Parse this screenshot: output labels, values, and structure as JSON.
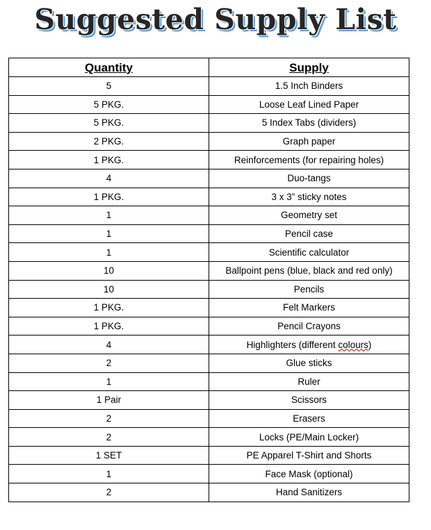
{
  "title": "Suggested Supply List",
  "table": {
    "headers": [
      "Quantity",
      "Supply"
    ],
    "rows": [
      [
        "5",
        "1.5 Inch Binders"
      ],
      [
        "5 PKG.",
        "Loose Leaf Lined Paper"
      ],
      [
        "5 PKG.",
        "5 Index Tabs (dividers)"
      ],
      [
        "2 PKG.",
        "Graph paper"
      ],
      [
        "1 PKG.",
        "Reinforcements (for repairing holes)"
      ],
      [
        "4",
        "Duo-tangs"
      ],
      [
        "1 PKG.",
        "3 x 3” sticky notes"
      ],
      [
        "1",
        "Geometry set"
      ],
      [
        "1",
        "Pencil case"
      ],
      [
        "1",
        "Scientific calculator"
      ],
      [
        "10",
        "Ballpoint pens (blue, black and red only)"
      ],
      [
        "10",
        "Pencils"
      ],
      [
        "1 PKG.",
        "Felt Markers"
      ],
      [
        "1 PKG.",
        "Pencil Crayons"
      ],
      [
        "4",
        "Highlighters (different colours)"
      ],
      [
        "2",
        "Glue sticks"
      ],
      [
        "1",
        "Ruler"
      ],
      [
        "1 Pair",
        "Scissors"
      ],
      [
        "2",
        "Erasers"
      ],
      [
        "2",
        "Locks (PE/Main Locker)"
      ],
      [
        "1 SET",
        "PE Apparel T-Shirt and Shorts"
      ],
      [
        "1",
        "Face Mask (optional)"
      ],
      [
        "2",
        "Hand Sanitizers"
      ]
    ]
  }
}
